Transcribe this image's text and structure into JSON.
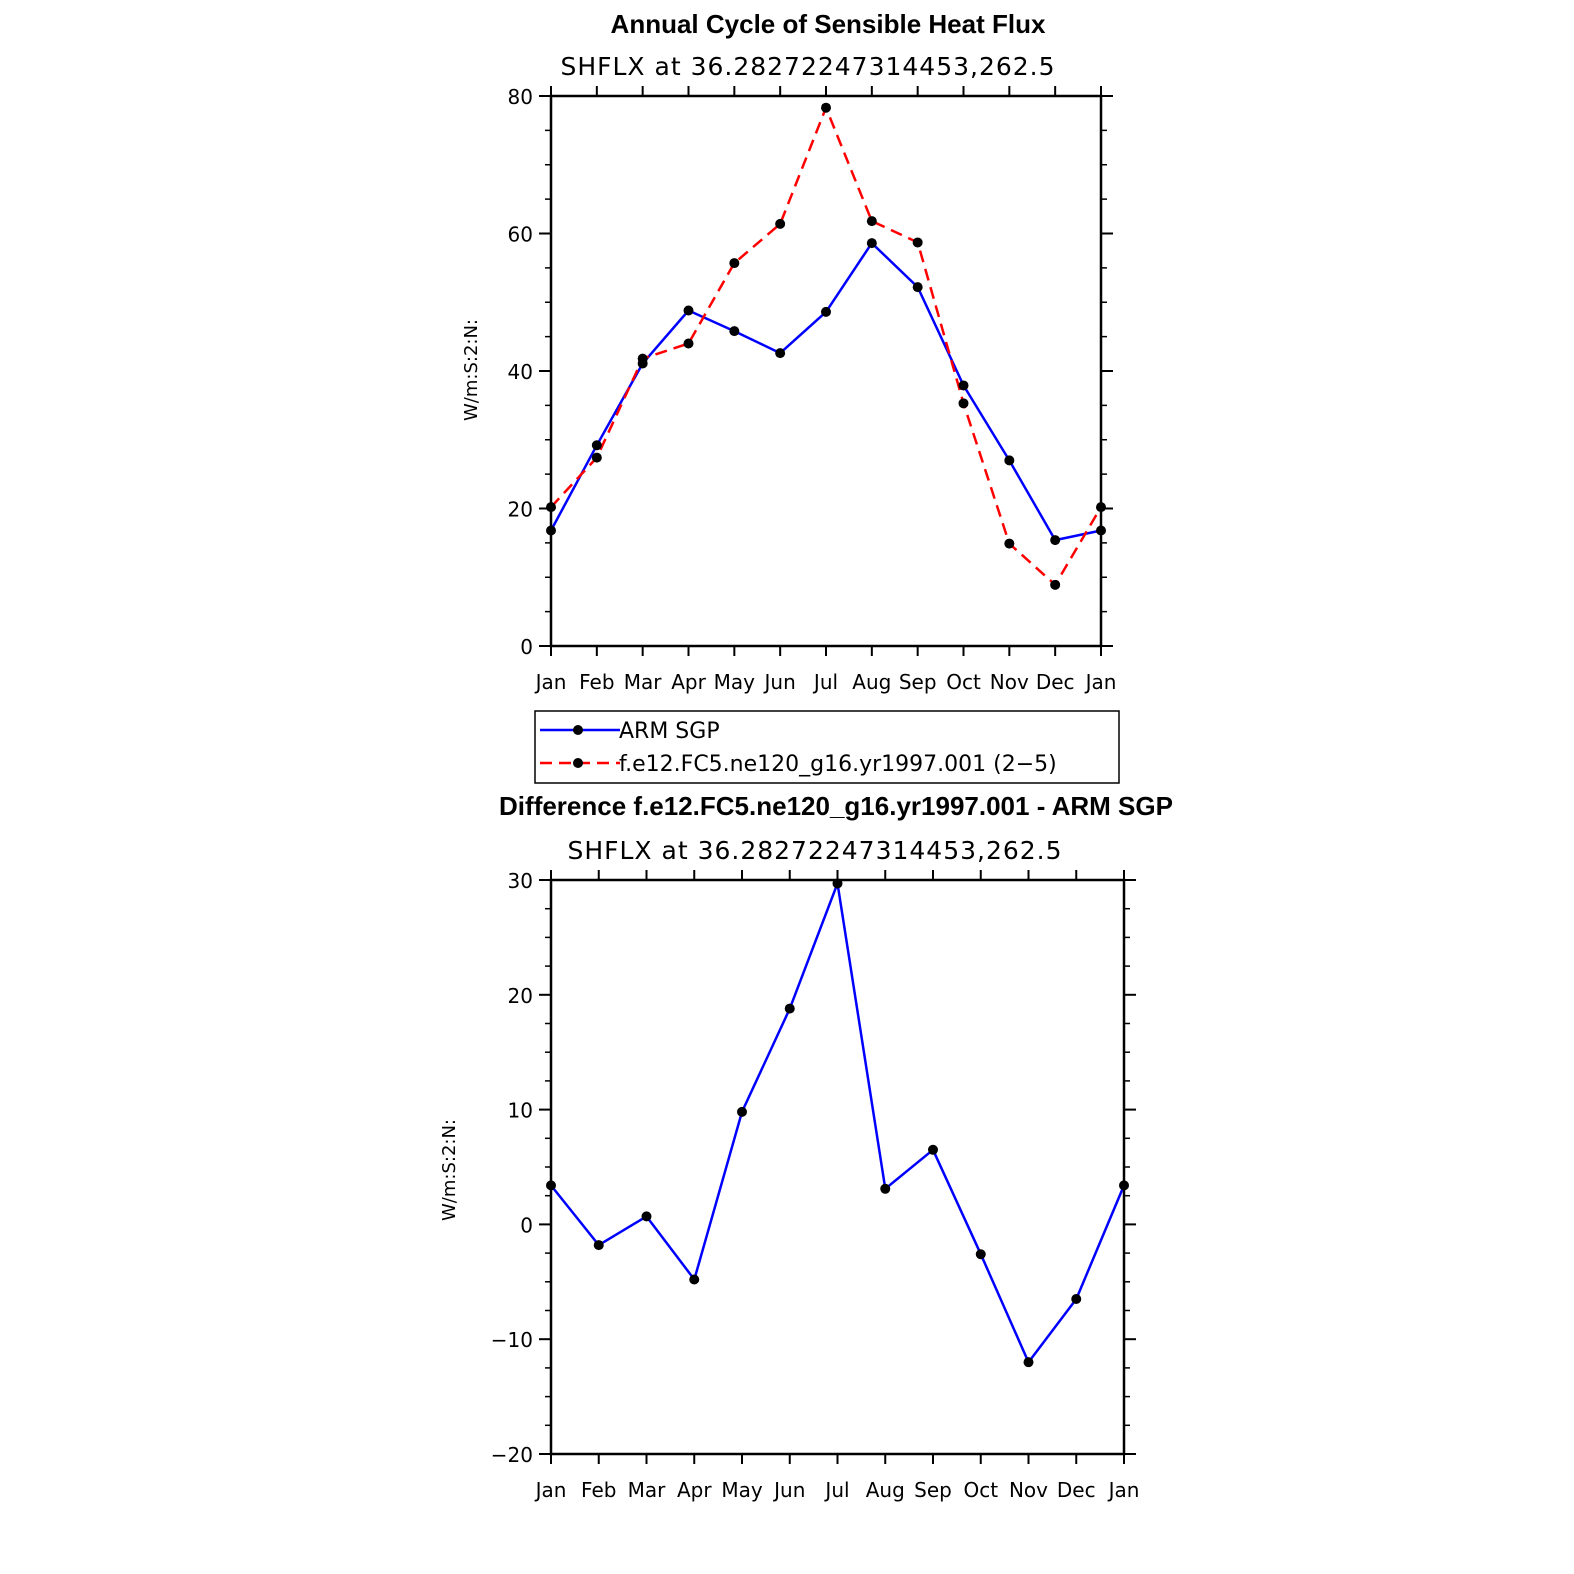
{
  "colors": {
    "series_a": "#0000ff",
    "series_b": "#ff0000",
    "marker": "#000000",
    "axis": "#000000"
  },
  "chart_data": [
    {
      "type": "line",
      "title": "Annual Cycle of Sensible Heat Flux",
      "subtitle": "SHFLX  at  36.28272247314453,262.5",
      "xlabel": "",
      "ylabel": "W/m:S:2:N:",
      "categories": [
        "Jan",
        "Feb",
        "Mar",
        "Apr",
        "May",
        "Jun",
        "Jul",
        "Aug",
        "Sep",
        "Oct",
        "Nov",
        "Dec",
        "Jan"
      ],
      "ylim": [
        0,
        80
      ],
      "yticks": [
        0,
        20,
        40,
        60,
        80
      ],
      "yticks_labels": [
        "0",
        "20",
        "40",
        "60",
        "80"
      ],
      "series": [
        {
          "name": "ARM  SGP",
          "style": "solid",
          "color": "#0000ff",
          "values": [
            16.8,
            29.2,
            41.1,
            48.8,
            45.8,
            42.6,
            48.6,
            58.6,
            52.2,
            37.9,
            27.0,
            15.4,
            16.8
          ]
        },
        {
          "name": "f.e12.FC5.ne120_g16.yr1997.001 (2−5)",
          "style": "dashed",
          "color": "#ff0000",
          "values": [
            20.2,
            27.4,
            41.8,
            44.0,
            55.7,
            61.4,
            78.3,
            61.8,
            58.7,
            35.3,
            14.9,
            8.9,
            20.2
          ]
        }
      ],
      "legend": {
        "position": "below"
      }
    },
    {
      "type": "line",
      "title": "Difference f.e12.FC5.ne120_g16.yr1997.001 - ARM SGP",
      "subtitle": "SHFLX  at  36.28272247314453,262.5",
      "xlabel": "",
      "ylabel": "W/m:S:2:N:",
      "categories": [
        "Jan",
        "Feb",
        "Mar",
        "Apr",
        "May",
        "Jun",
        "Jul",
        "Aug",
        "Sep",
        "Oct",
        "Nov",
        "Dec",
        "Jan"
      ],
      "ylim": [
        -20,
        30
      ],
      "yticks": [
        -20,
        -10,
        0,
        10,
        20,
        30
      ],
      "yticks_labels": [
        "−20",
        "−10",
        "0",
        "10",
        "20",
        "30"
      ],
      "series": [
        {
          "name": "Difference",
          "style": "solid",
          "color": "#0000ff",
          "values": [
            3.4,
            -1.8,
            0.7,
            -4.8,
            9.8,
            18.8,
            29.7,
            3.1,
            6.5,
            -2.6,
            -12.0,
            -6.5,
            3.4
          ]
        }
      ]
    }
  ]
}
